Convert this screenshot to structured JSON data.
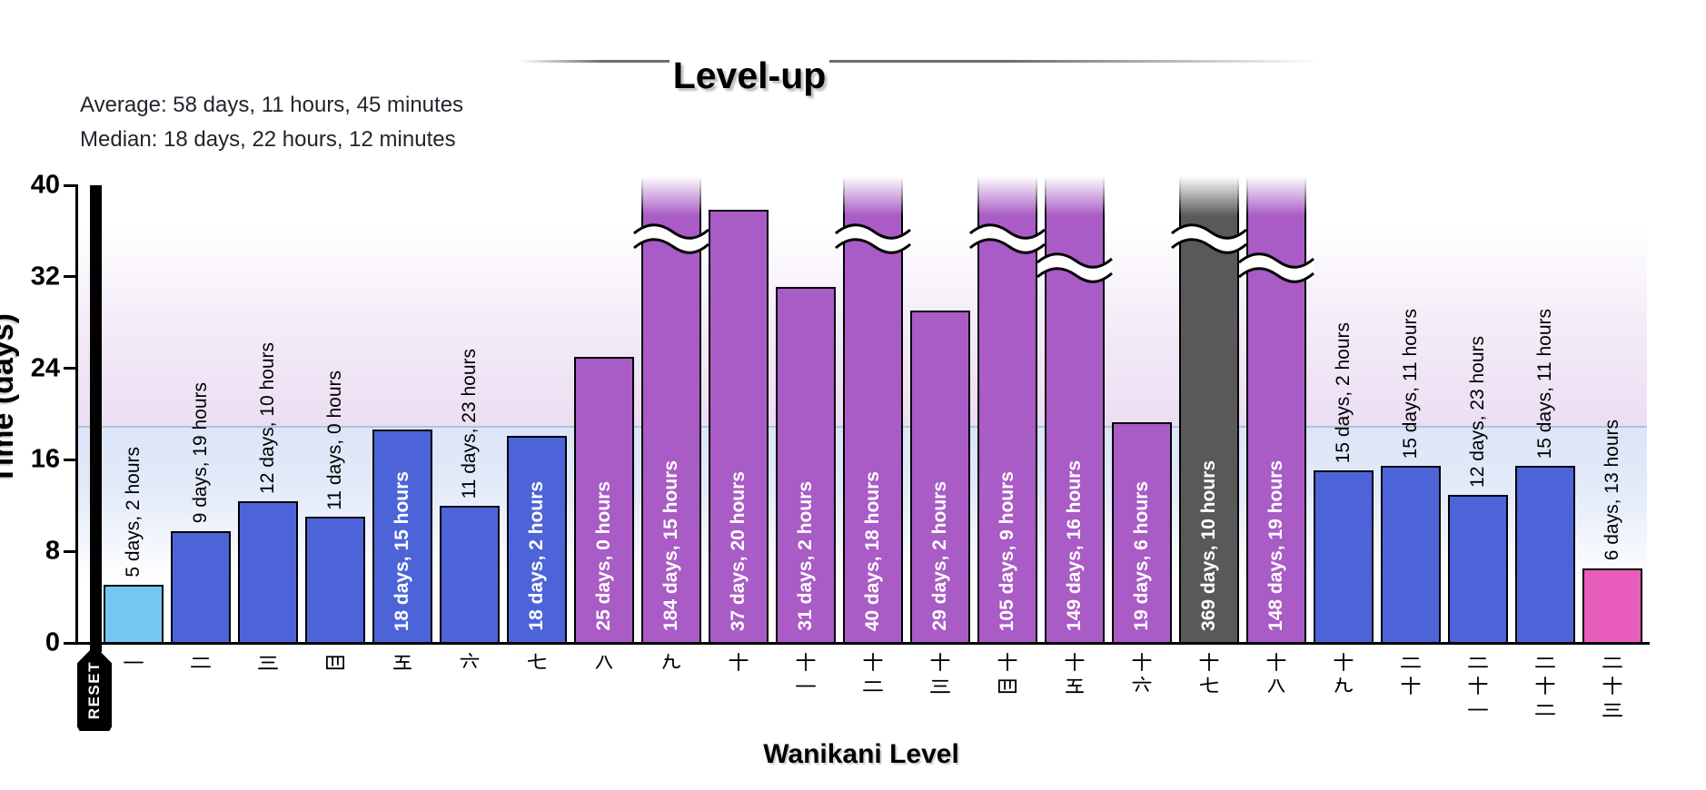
{
  "title": "Level-up",
  "stats": {
    "average": "Average: 58 days, 11 hours, 45 minutes",
    "median": "Median: 18 days, 22 hours, 12 minutes"
  },
  "axes": {
    "y_label": "Time (days)",
    "x_label": "Wanikani Level"
  },
  "reset_marker": {
    "label": "RESET"
  },
  "chart_data": {
    "type": "bar",
    "title": "Level-up",
    "xlabel": "Wanikani Level",
    "ylabel": "Time (days)",
    "ylim": [
      0,
      40
    ],
    "y_ticks": [
      0,
      8,
      16,
      24,
      32,
      40
    ],
    "grid": false,
    "average_days": 58.49,
    "median_days": 18.925,
    "categories": [
      "一",
      "二",
      "三",
      "四",
      "五",
      "六",
      "七",
      "八",
      "九",
      "十",
      "十一",
      "十二",
      "十三",
      "十四",
      "十五",
      "十六",
      "十七",
      "十八",
      "十九",
      "二十",
      "二十一",
      "二十二",
      "二十三"
    ],
    "bars": [
      {
        "level": 1,
        "kanji": "一",
        "label": "5 days, 2 hours",
        "days": 5,
        "hours": 2,
        "color_key": "lightblue",
        "broken": false,
        "label_pos": "above"
      },
      {
        "level": 2,
        "kanji": "二",
        "label": "9 days, 19 hours",
        "days": 9,
        "hours": 19,
        "color_key": "blue",
        "broken": false,
        "label_pos": "above"
      },
      {
        "level": 3,
        "kanji": "三",
        "label": "12 days, 10 hours",
        "days": 12,
        "hours": 10,
        "color_key": "blue",
        "broken": false,
        "label_pos": "above"
      },
      {
        "level": 4,
        "kanji": "四",
        "label": "11 days, 0 hours",
        "days": 11,
        "hours": 0,
        "color_key": "blue",
        "broken": false,
        "label_pos": "above"
      },
      {
        "level": 5,
        "kanji": "五",
        "label": "18 days, 15 hours",
        "days": 18,
        "hours": 15,
        "color_key": "blue",
        "broken": false,
        "label_pos": "inside"
      },
      {
        "level": 6,
        "kanji": "六",
        "label": "11 days, 23 hours",
        "days": 11,
        "hours": 23,
        "color_key": "blue",
        "broken": false,
        "label_pos": "above"
      },
      {
        "level": 7,
        "kanji": "七",
        "label": "18 days, 2 hours",
        "days": 18,
        "hours": 2,
        "color_key": "blue",
        "broken": false,
        "label_pos": "inside"
      },
      {
        "level": 8,
        "kanji": "八",
        "label": "25 days, 0 hours",
        "days": 25,
        "hours": 0,
        "color_key": "purple",
        "broken": false,
        "label_pos": "inside"
      },
      {
        "level": 9,
        "kanji": "九",
        "label": "184 days, 15 hours",
        "days": 184,
        "hours": 15,
        "color_key": "purple",
        "broken": true,
        "break_at": 35.3,
        "label_pos": "inside"
      },
      {
        "level": 10,
        "kanji": "十",
        "label": "37 days, 20 hours",
        "days": 37,
        "hours": 20,
        "color_key": "purple",
        "broken": false,
        "label_pos": "inside"
      },
      {
        "level": 11,
        "kanji": "十一",
        "label": "31 days, 2 hours",
        "days": 31,
        "hours": 2,
        "color_key": "purple",
        "broken": false,
        "label_pos": "inside"
      },
      {
        "level": 12,
        "kanji": "十二",
        "label": "40 days, 18 hours",
        "days": 40,
        "hours": 18,
        "color_key": "purple",
        "broken": true,
        "break_at": 35.3,
        "label_pos": "inside"
      },
      {
        "level": 13,
        "kanji": "十三",
        "label": "29 days, 2 hours",
        "days": 29,
        "hours": 2,
        "color_key": "purple",
        "broken": false,
        "label_pos": "inside"
      },
      {
        "level": 14,
        "kanji": "十四",
        "label": "105 days, 9 hours",
        "days": 105,
        "hours": 9,
        "color_key": "purple",
        "broken": true,
        "break_at": 35.3,
        "label_pos": "inside"
      },
      {
        "level": 15,
        "kanji": "十五",
        "label": "149 days, 16 hours",
        "days": 149,
        "hours": 16,
        "color_key": "purple",
        "broken": true,
        "break_at": 32.8,
        "label_pos": "inside"
      },
      {
        "level": 16,
        "kanji": "十六",
        "label": "19 days, 6 hours",
        "days": 19,
        "hours": 6,
        "color_key": "purple",
        "broken": false,
        "label_pos": "inside"
      },
      {
        "level": 17,
        "kanji": "十七",
        "label": "369 days, 10 hours",
        "days": 369,
        "hours": 10,
        "color_key": "gray",
        "broken": true,
        "break_at": 35.3,
        "label_pos": "inside"
      },
      {
        "level": 18,
        "kanji": "十八",
        "label": "148 days, 19 hours",
        "days": 148,
        "hours": 19,
        "color_key": "purple",
        "broken": true,
        "break_at": 32.8,
        "label_pos": "inside"
      },
      {
        "level": 19,
        "kanji": "十九",
        "label": "15 days, 2 hours",
        "days": 15,
        "hours": 2,
        "color_key": "blue",
        "broken": false,
        "label_pos": "above"
      },
      {
        "level": 20,
        "kanji": "二十",
        "label": "15 days, 11 hours",
        "days": 15,
        "hours": 11,
        "color_key": "blue",
        "broken": false,
        "label_pos": "above"
      },
      {
        "level": 21,
        "kanji": "二十一",
        "label": "12 days, 23 hours",
        "days": 12,
        "hours": 23,
        "color_key": "blue",
        "broken": false,
        "label_pos": "above"
      },
      {
        "level": 22,
        "kanji": "二十二",
        "label": "15 days, 11 hours",
        "days": 15,
        "hours": 11,
        "color_key": "blue",
        "broken": false,
        "label_pos": "above"
      },
      {
        "level": 23,
        "kanji": "二十三",
        "label": "6 days, 13 hours",
        "days": 6,
        "hours": 13,
        "color_key": "pink",
        "broken": false,
        "label_pos": "above"
      }
    ],
    "colors": {
      "lightblue": "#74C7F2",
      "blue": "#4D64D9",
      "purple": "#A95BC6",
      "gray": "#595959",
      "pink": "#E85CBB",
      "bar_border": "#000000",
      "band_above_median": "#EBDEF2",
      "band_below_median": "#DAE4F7",
      "median_line": "#B5C1DB"
    },
    "legend": null
  }
}
